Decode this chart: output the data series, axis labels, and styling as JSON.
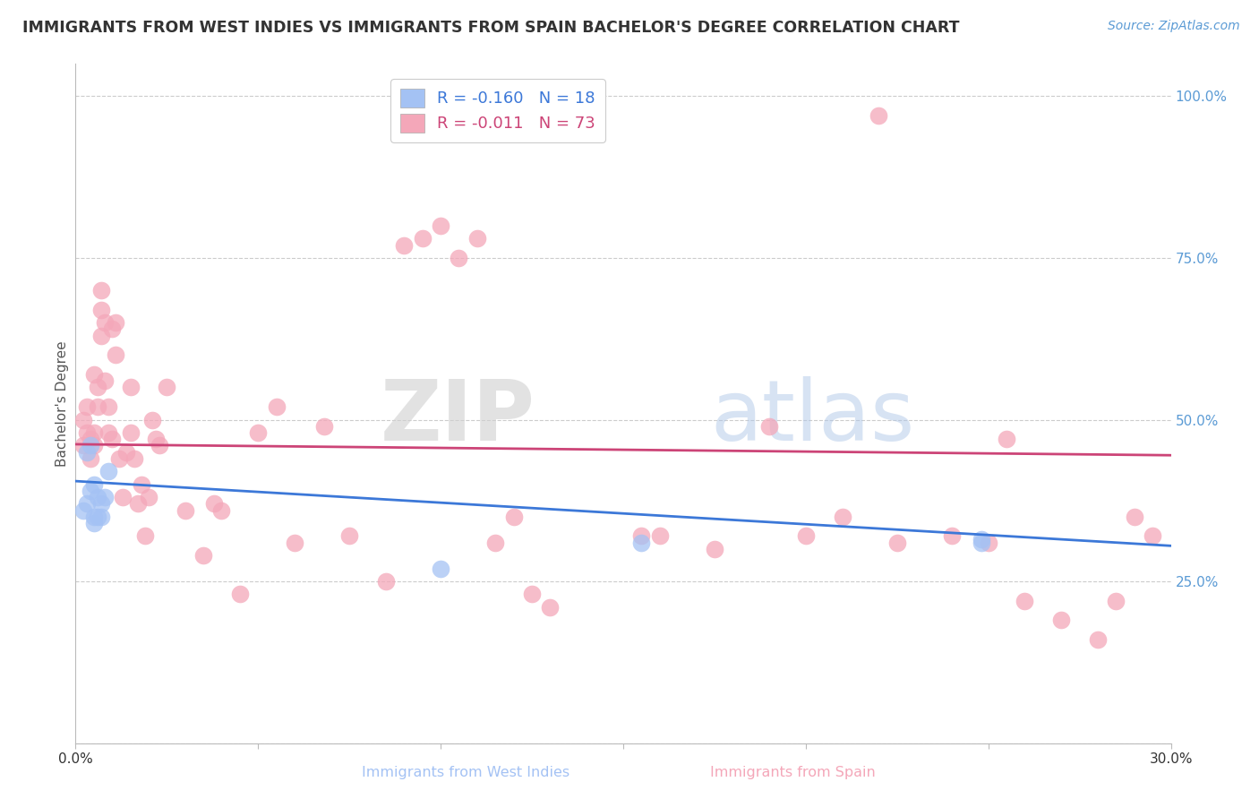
{
  "title": "IMMIGRANTS FROM WEST INDIES VS IMMIGRANTS FROM SPAIN BACHELOR'S DEGREE CORRELATION CHART",
  "source": "Source: ZipAtlas.com",
  "xlabel_label": "Immigrants from West Indies",
  "ylabel_label": "Bachelor's Degree",
  "xlabel_right_label": "Immigrants from Spain",
  "xlim": [
    0.0,
    0.3
  ],
  "ylim": [
    0.0,
    1.05
  ],
  "legend_R_blue": "-0.160",
  "legend_N_blue": "18",
  "legend_R_pink": "-0.011",
  "legend_N_pink": "73",
  "blue_color": "#a4c2f4",
  "pink_color": "#f4a7b9",
  "blue_line_color": "#3c78d8",
  "pink_line_color": "#cc4477",
  "grid_color": "#cccccc",
  "background_color": "#ffffff",
  "watermark_zip": "ZIP",
  "watermark_atlas": "atlas",
  "blue_x": [
    0.002,
    0.003,
    0.003,
    0.004,
    0.004,
    0.005,
    0.005,
    0.005,
    0.006,
    0.006,
    0.007,
    0.007,
    0.008,
    0.009,
    0.1,
    0.155,
    0.248,
    0.248
  ],
  "blue_y": [
    0.36,
    0.37,
    0.45,
    0.39,
    0.46,
    0.34,
    0.35,
    0.4,
    0.35,
    0.38,
    0.35,
    0.37,
    0.38,
    0.42,
    0.27,
    0.31,
    0.31,
    0.315
  ],
  "pink_x": [
    0.002,
    0.002,
    0.003,
    0.003,
    0.004,
    0.004,
    0.005,
    0.005,
    0.005,
    0.006,
    0.006,
    0.007,
    0.007,
    0.007,
    0.008,
    0.008,
    0.009,
    0.009,
    0.01,
    0.01,
    0.011,
    0.011,
    0.012,
    0.013,
    0.014,
    0.015,
    0.015,
    0.016,
    0.017,
    0.018,
    0.019,
    0.02,
    0.021,
    0.022,
    0.023,
    0.025,
    0.03,
    0.035,
    0.038,
    0.04,
    0.045,
    0.05,
    0.055,
    0.06,
    0.068,
    0.075,
    0.085,
    0.09,
    0.095,
    0.1,
    0.105,
    0.11,
    0.115,
    0.12,
    0.125,
    0.13,
    0.155,
    0.16,
    0.175,
    0.19,
    0.2,
    0.21,
    0.22,
    0.225,
    0.24,
    0.25,
    0.255,
    0.26,
    0.27,
    0.28,
    0.285,
    0.29,
    0.295
  ],
  "pink_y": [
    0.46,
    0.5,
    0.48,
    0.52,
    0.44,
    0.47,
    0.46,
    0.48,
    0.57,
    0.52,
    0.55,
    0.63,
    0.67,
    0.7,
    0.56,
    0.65,
    0.48,
    0.52,
    0.47,
    0.64,
    0.6,
    0.65,
    0.44,
    0.38,
    0.45,
    0.48,
    0.55,
    0.44,
    0.37,
    0.4,
    0.32,
    0.38,
    0.5,
    0.47,
    0.46,
    0.55,
    0.36,
    0.29,
    0.37,
    0.36,
    0.23,
    0.48,
    0.52,
    0.31,
    0.49,
    0.32,
    0.25,
    0.77,
    0.78,
    0.8,
    0.75,
    0.78,
    0.31,
    0.35,
    0.23,
    0.21,
    0.32,
    0.32,
    0.3,
    0.49,
    0.32,
    0.35,
    0.97,
    0.31,
    0.32,
    0.31,
    0.47,
    0.22,
    0.19,
    0.16,
    0.22,
    0.35,
    0.32
  ],
  "pink_line_x0": 0.0,
  "pink_line_y0": 0.462,
  "pink_line_x1": 0.3,
  "pink_line_y1": 0.445,
  "blue_line_x0": 0.0,
  "blue_line_y0": 0.405,
  "blue_line_x1": 0.3,
  "blue_line_y1": 0.305
}
